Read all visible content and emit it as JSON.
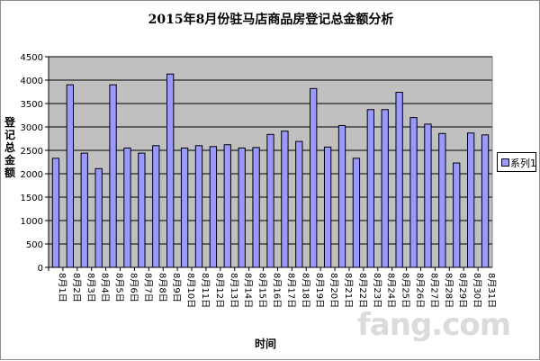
{
  "chart_data": {
    "type": "bar",
    "title": "2015年8月份驻马店商品房登记总金额分析",
    "xlabel": "时间",
    "ylabel": "登记总金额",
    "ylim": [
      0,
      4500
    ],
    "yticks": [
      0,
      500,
      1000,
      1500,
      2000,
      2500,
      3000,
      3500,
      4000,
      4500
    ],
    "grid": true,
    "legend_position": "right",
    "categories": [
      "8月1日",
      "8月2日",
      "8月3日",
      "8月4日",
      "8月5日",
      "8月6日",
      "8月7日",
      "8月8日",
      "8月9日",
      "8月10日",
      "8月11日",
      "8月12日",
      "8月13日",
      "8月14日",
      "8月15日",
      "8月16日",
      "8月17日",
      "8月18日",
      "8月19日",
      "8月20日",
      "8月21日",
      "8月22日",
      "8月23日",
      "8月24日",
      "8月25日",
      "8月26日",
      "8月27日",
      "8月28日",
      "8月29日",
      "8月30日",
      "8月31日"
    ],
    "series": [
      {
        "name": "系列1",
        "color": "#9999ff",
        "values": [
          2330,
          3900,
          2440,
          2110,
          3900,
          2550,
          2440,
          2600,
          4130,
          2550,
          2600,
          2580,
          2620,
          2550,
          2560,
          2840,
          2910,
          2690,
          3820,
          2570,
          3030,
          2330,
          3370,
          3370,
          3740,
          3200,
          3060,
          2860,
          2230,
          2870,
          2830
        ]
      }
    ],
    "plot_bg": "#c0c0c0",
    "watermark": "fang.com"
  }
}
